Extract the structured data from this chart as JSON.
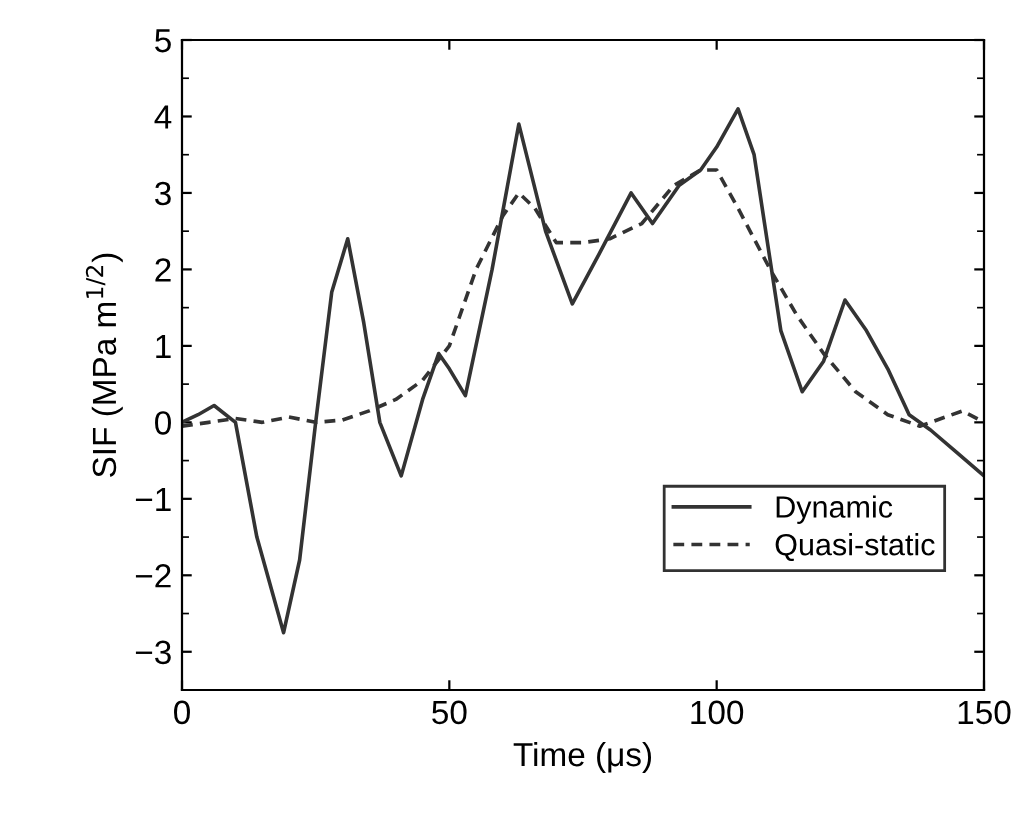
{
  "chart_data": {
    "type": "line",
    "xlabel": "Time (μs)",
    "ylabel": "SIF (MPa m$^{1/2}$)",
    "xlim": [
      0,
      150
    ],
    "ylim": [
      -3.5,
      5
    ],
    "xticks": [
      0,
      50,
      100,
      150
    ],
    "yticks": [
      {
        "value": -3,
        "label": "−3"
      },
      {
        "value": -2,
        "label": "−2"
      },
      {
        "value": -1,
        "label": "−1"
      },
      0,
      1,
      2,
      3,
      4,
      5
    ],
    "grid": false,
    "legend": "bottom right",
    "series": [
      {
        "name": "Dynamic",
        "color": "#333333",
        "line_style": "solid",
        "x": [
          0,
          3,
          6,
          10,
          14,
          19,
          22,
          25,
          28,
          31,
          34,
          37,
          41,
          45,
          48,
          50,
          53,
          58,
          63,
          68,
          73,
          78,
          84,
          88,
          93,
          97,
          100,
          104,
          107,
          112,
          116,
          120,
          124,
          128,
          132,
          136,
          140,
          145,
          150
        ],
        "values": [
          0,
          0.1,
          0.22,
          0,
          -1.5,
          -2.75,
          -1.8,
          0,
          1.7,
          2.4,
          1.3,
          0,
          -0.7,
          0.3,
          0.9,
          0.7,
          0.35,
          2.0,
          3.9,
          2.5,
          1.55,
          2.2,
          3.0,
          2.6,
          3.1,
          3.3,
          3.6,
          4.1,
          3.5,
          1.2,
          0.4,
          0.8,
          1.6,
          1.2,
          0.7,
          0.1,
          -0.1,
          -0.4,
          -0.7
        ]
      },
      {
        "name": "Quasi-static",
        "color": "#333333",
        "line_style": "dashed",
        "x": [
          0,
          5,
          10,
          15,
          20,
          25,
          30,
          35,
          40,
          45,
          50,
          55,
          60,
          63,
          66,
          70,
          75,
          80,
          86,
          92,
          97,
          100,
          104,
          110,
          115,
          120,
          126,
          132,
          138,
          142,
          146,
          150
        ],
        "values": [
          -0.05,
          0,
          0.05,
          0,
          0.07,
          0,
          0.03,
          0.15,
          0.3,
          0.55,
          1.0,
          2.0,
          2.7,
          3.0,
          2.8,
          2.35,
          2.35,
          2.4,
          2.6,
          3.1,
          3.3,
          3.3,
          2.8,
          2.0,
          1.4,
          0.9,
          0.4,
          0.1,
          -0.05,
          0.05,
          0.15,
          0.0
        ]
      }
    ]
  }
}
